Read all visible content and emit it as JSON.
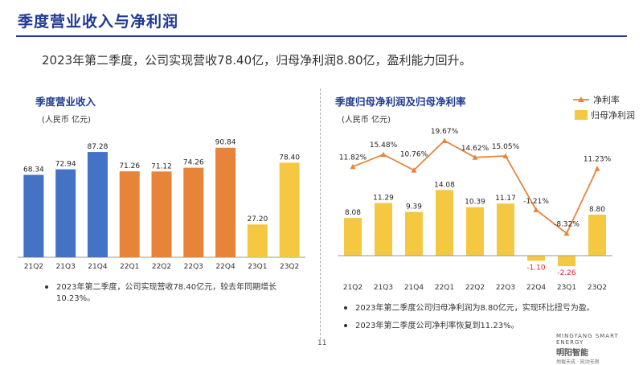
{
  "title": "季度营业收入与净利润",
  "headline": "2023年第二季度，公司实现营收78.40亿，归母净利润8.80亿，盈利能力回升。",
  "colors": {
    "blue": "#4472c4",
    "orange": "#e8843a",
    "yellow": "#f5c842",
    "line": "#e8843a",
    "title": "#1f3a93"
  },
  "chart_data": [
    {
      "type": "bar",
      "title": "季度营业收入",
      "unit": "(人民币 亿元)",
      "categories": [
        "21Q2",
        "21Q3",
        "21Q4",
        "22Q1",
        "22Q2",
        "22Q3",
        "22Q4",
        "23Q1",
        "23Q2"
      ],
      "values": [
        68.34,
        72.94,
        87.28,
        71.26,
        71.12,
        74.26,
        90.84,
        27.2,
        78.4
      ],
      "labels": [
        "68.34",
        "72.94",
        "87.28",
        "71.26",
        "71.12",
        "74.26",
        "90.84",
        "27.20",
        "78.40"
      ],
      "bar_colors": [
        "#4472c4",
        "#4472c4",
        "#4472c4",
        "#e8843a",
        "#e8843a",
        "#e8843a",
        "#e8843a",
        "#f5c842",
        "#f5c842"
      ],
      "ylim": [
        0,
        100
      ]
    },
    {
      "type": "bar+line",
      "title": "季度归母净利润及归母净利率",
      "unit": "(人民币 亿元)",
      "categories": [
        "21Q2",
        "21Q3",
        "21Q4",
        "22Q1",
        "22Q2",
        "22Q3",
        "22Q4",
        "23Q1",
        "23Q2"
      ],
      "series": [
        {
          "name": "归母净利润",
          "type": "bar",
          "values": [
            8.08,
            11.29,
            9.39,
            14.08,
            10.39,
            11.17,
            -1.1,
            -2.26,
            8.8
          ],
          "labels": [
            "8.08",
            "11.29",
            "9.39",
            "14.08",
            "10.39",
            "11.17",
            "-1.10",
            "-2.26",
            "8.80"
          ]
        },
        {
          "name": "净利率",
          "type": "line",
          "values": [
            11.82,
            15.48,
            10.76,
            19.67,
            14.62,
            15.05,
            -1.21,
            -8.32,
            11.23
          ],
          "labels": [
            "11.82%",
            "15.48%",
            "10.76%",
            "19.67%",
            "14.62%",
            "15.05%",
            "-1.21%",
            "-8.32%",
            "11.23%"
          ]
        }
      ],
      "legend": [
        "净利率",
        "归母净利润"
      ],
      "legend_position": "top-right"
    }
  ],
  "notes": {
    "revenue_line1": "2023年第二季度，公司实现营收78.40亿元，较去年同期增长",
    "revenue_line2": "10.23%。",
    "profit_1": "2023年第二季度公司归母净利润为8.80亿元，实现环比扭亏为盈。",
    "profit_2": "2023年第二季度公司净利率恢复到11.23%。"
  },
  "page_number": "11",
  "logo": {
    "en": "MINGYANG SMART ENERGY",
    "cn": "明阳智能",
    "tagline": "地载天成 · 能动无限"
  }
}
